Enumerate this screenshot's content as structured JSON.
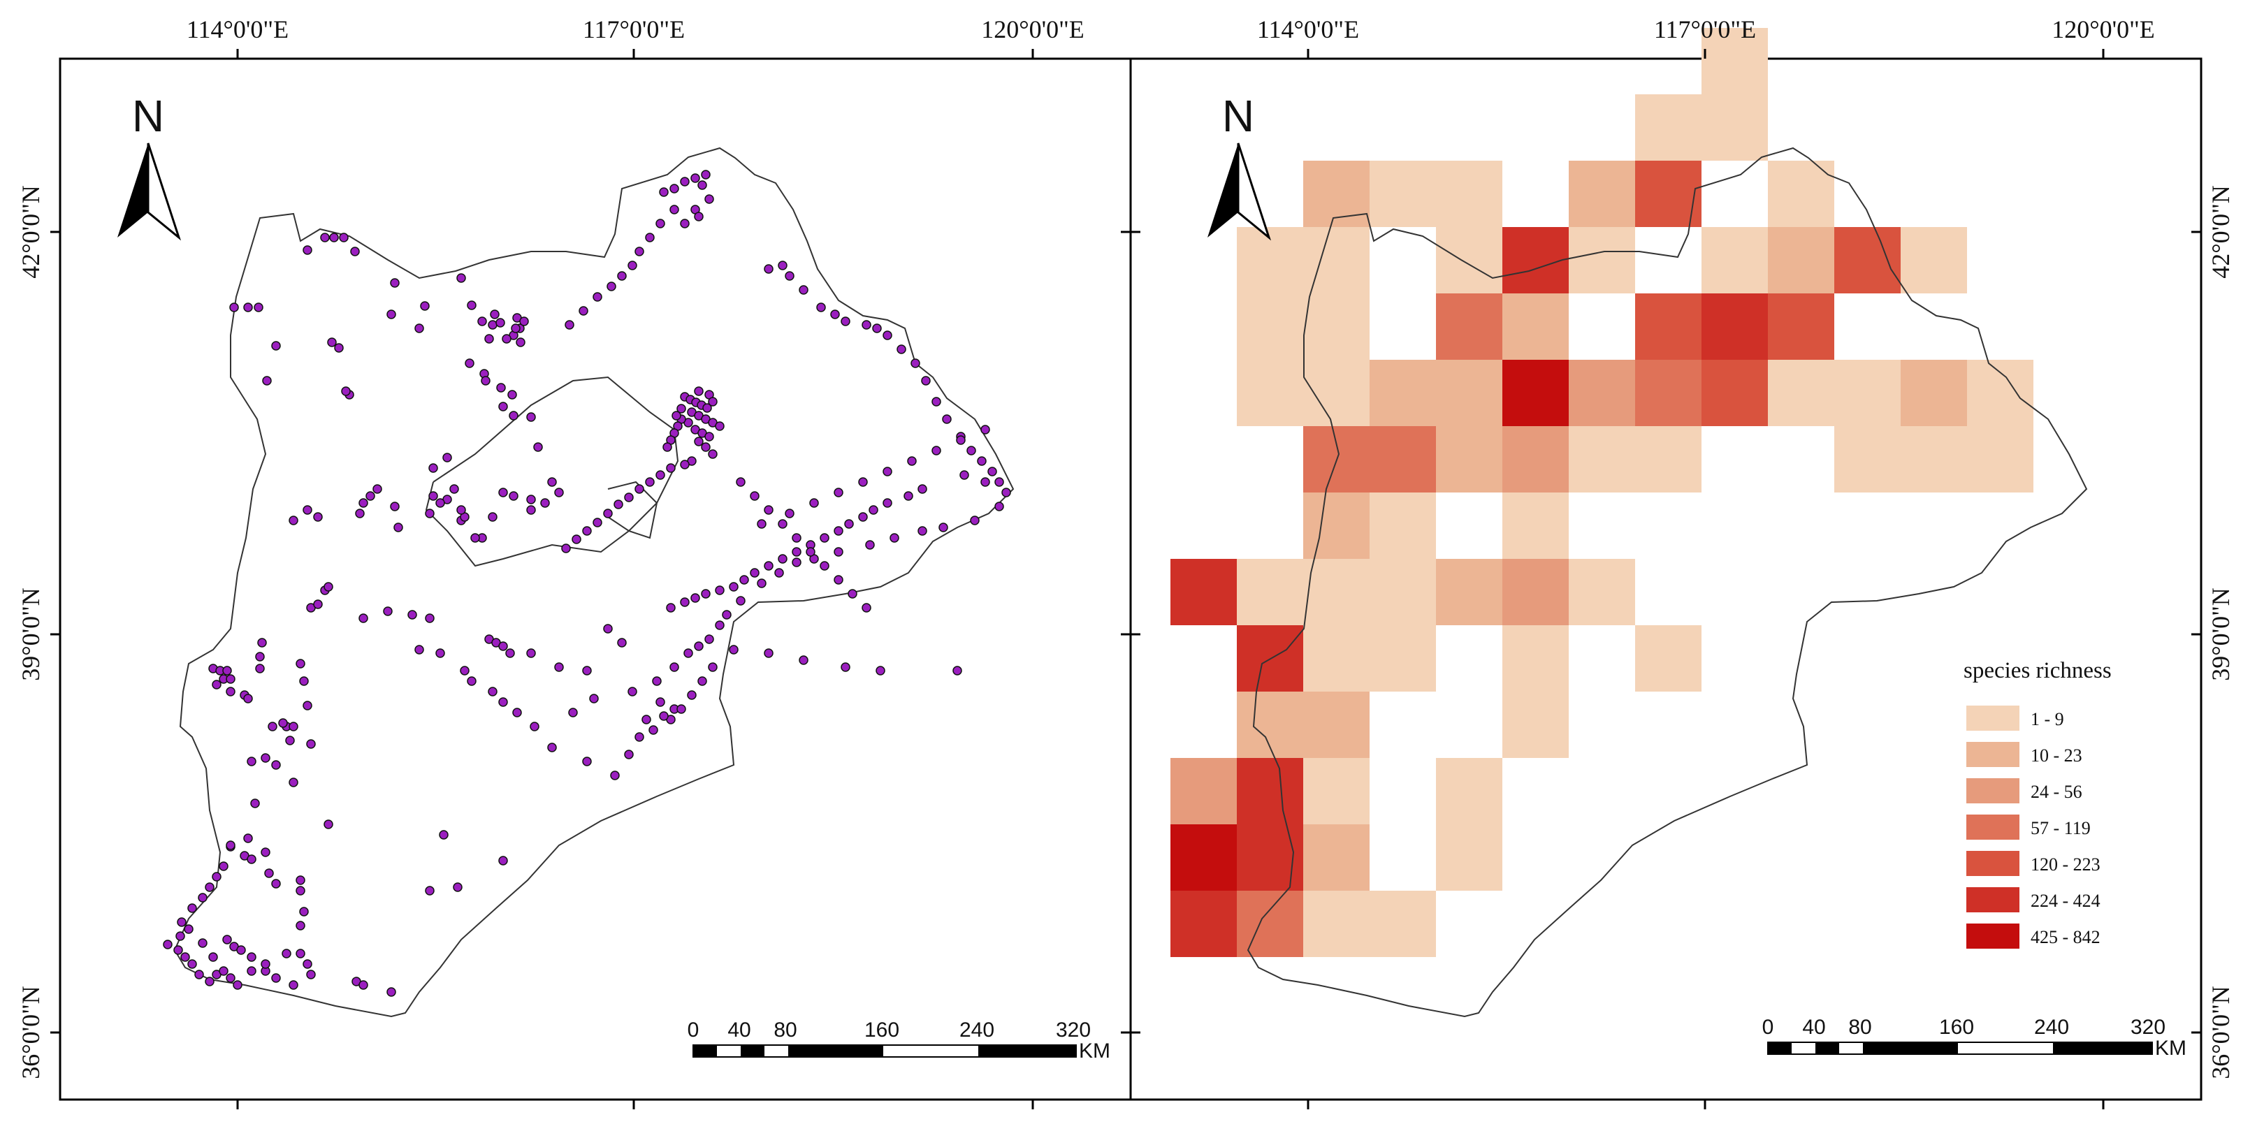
{
  "maps": [
    {
      "id": "occurrence",
      "lon_labels": [
        "114°0'0\"E",
        "117°0'0\"E",
        "120°0'0\"E"
      ],
      "lat_labels": [
        "42°0'0\"N",
        "39°0'0\"N",
        "36°0'0\"N"
      ],
      "north_label": "N",
      "scale_labels": [
        "0",
        "40",
        "80",
        "160",
        "240",
        "320"
      ],
      "scale_unit": "KM",
      "point_color": "#9b1fbf"
    },
    {
      "id": "richness",
      "lon_labels": [
        "114°0'0\"E",
        "117°0'0\"E",
        "120°0'0\"E"
      ],
      "lat_labels": [
        "42°0'0\"N",
        "39°0'0\"N",
        "36°0'0\"N"
      ],
      "north_label": "N",
      "scale_labels": [
        "0",
        "40",
        "80",
        "160",
        "240",
        "320"
      ],
      "scale_unit": "KM",
      "legend": {
        "title": "species richness",
        "classes": [
          {
            "label": "1 - 9",
            "color": "#f4d3b7"
          },
          {
            "label": "10 - 23",
            "color": "#ecb594"
          },
          {
            "label": "24 - 56",
            "color": "#e69b7c"
          },
          {
            "label": "57 - 119",
            "color": "#df7258"
          },
          {
            "label": "120 - 223",
            "color": "#d9533e"
          },
          {
            "label": "224 - 424",
            "color": "#cf3027"
          },
          {
            "label": "425 - 842",
            "color": "#c40d0d"
          }
        ]
      }
    }
  ]
}
